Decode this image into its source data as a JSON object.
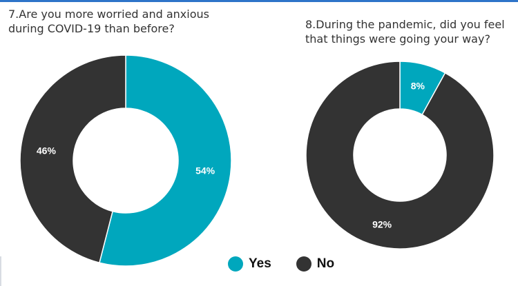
{
  "colors": {
    "yes": "#00a7bd",
    "no": "#333333",
    "label_on_yes": "#ffffff",
    "label_on_no": "#ffffff"
  },
  "legend": [
    {
      "label": "Yes",
      "color": "#00a7bd"
    },
    {
      "label": "No",
      "color": "#333333"
    }
  ],
  "chart_data": [
    {
      "type": "pie",
      "title": "7.Are you more worried and anxious\nduring COVID-19 than before?",
      "slices": [
        {
          "name": "Yes",
          "value": 54,
          "label": "54%"
        },
        {
          "name": "No",
          "value": 46,
          "label": "46%"
        }
      ],
      "donut": true,
      "legend_position": "bottom"
    },
    {
      "type": "pie",
      "title": "8.During the pandemic, did you feel\nthat things were going your way?",
      "slices": [
        {
          "name": "Yes",
          "value": 8,
          "label": "8%"
        },
        {
          "name": "No",
          "value": 92,
          "label": "92%"
        }
      ],
      "donut": true,
      "legend_position": "bottom"
    }
  ]
}
